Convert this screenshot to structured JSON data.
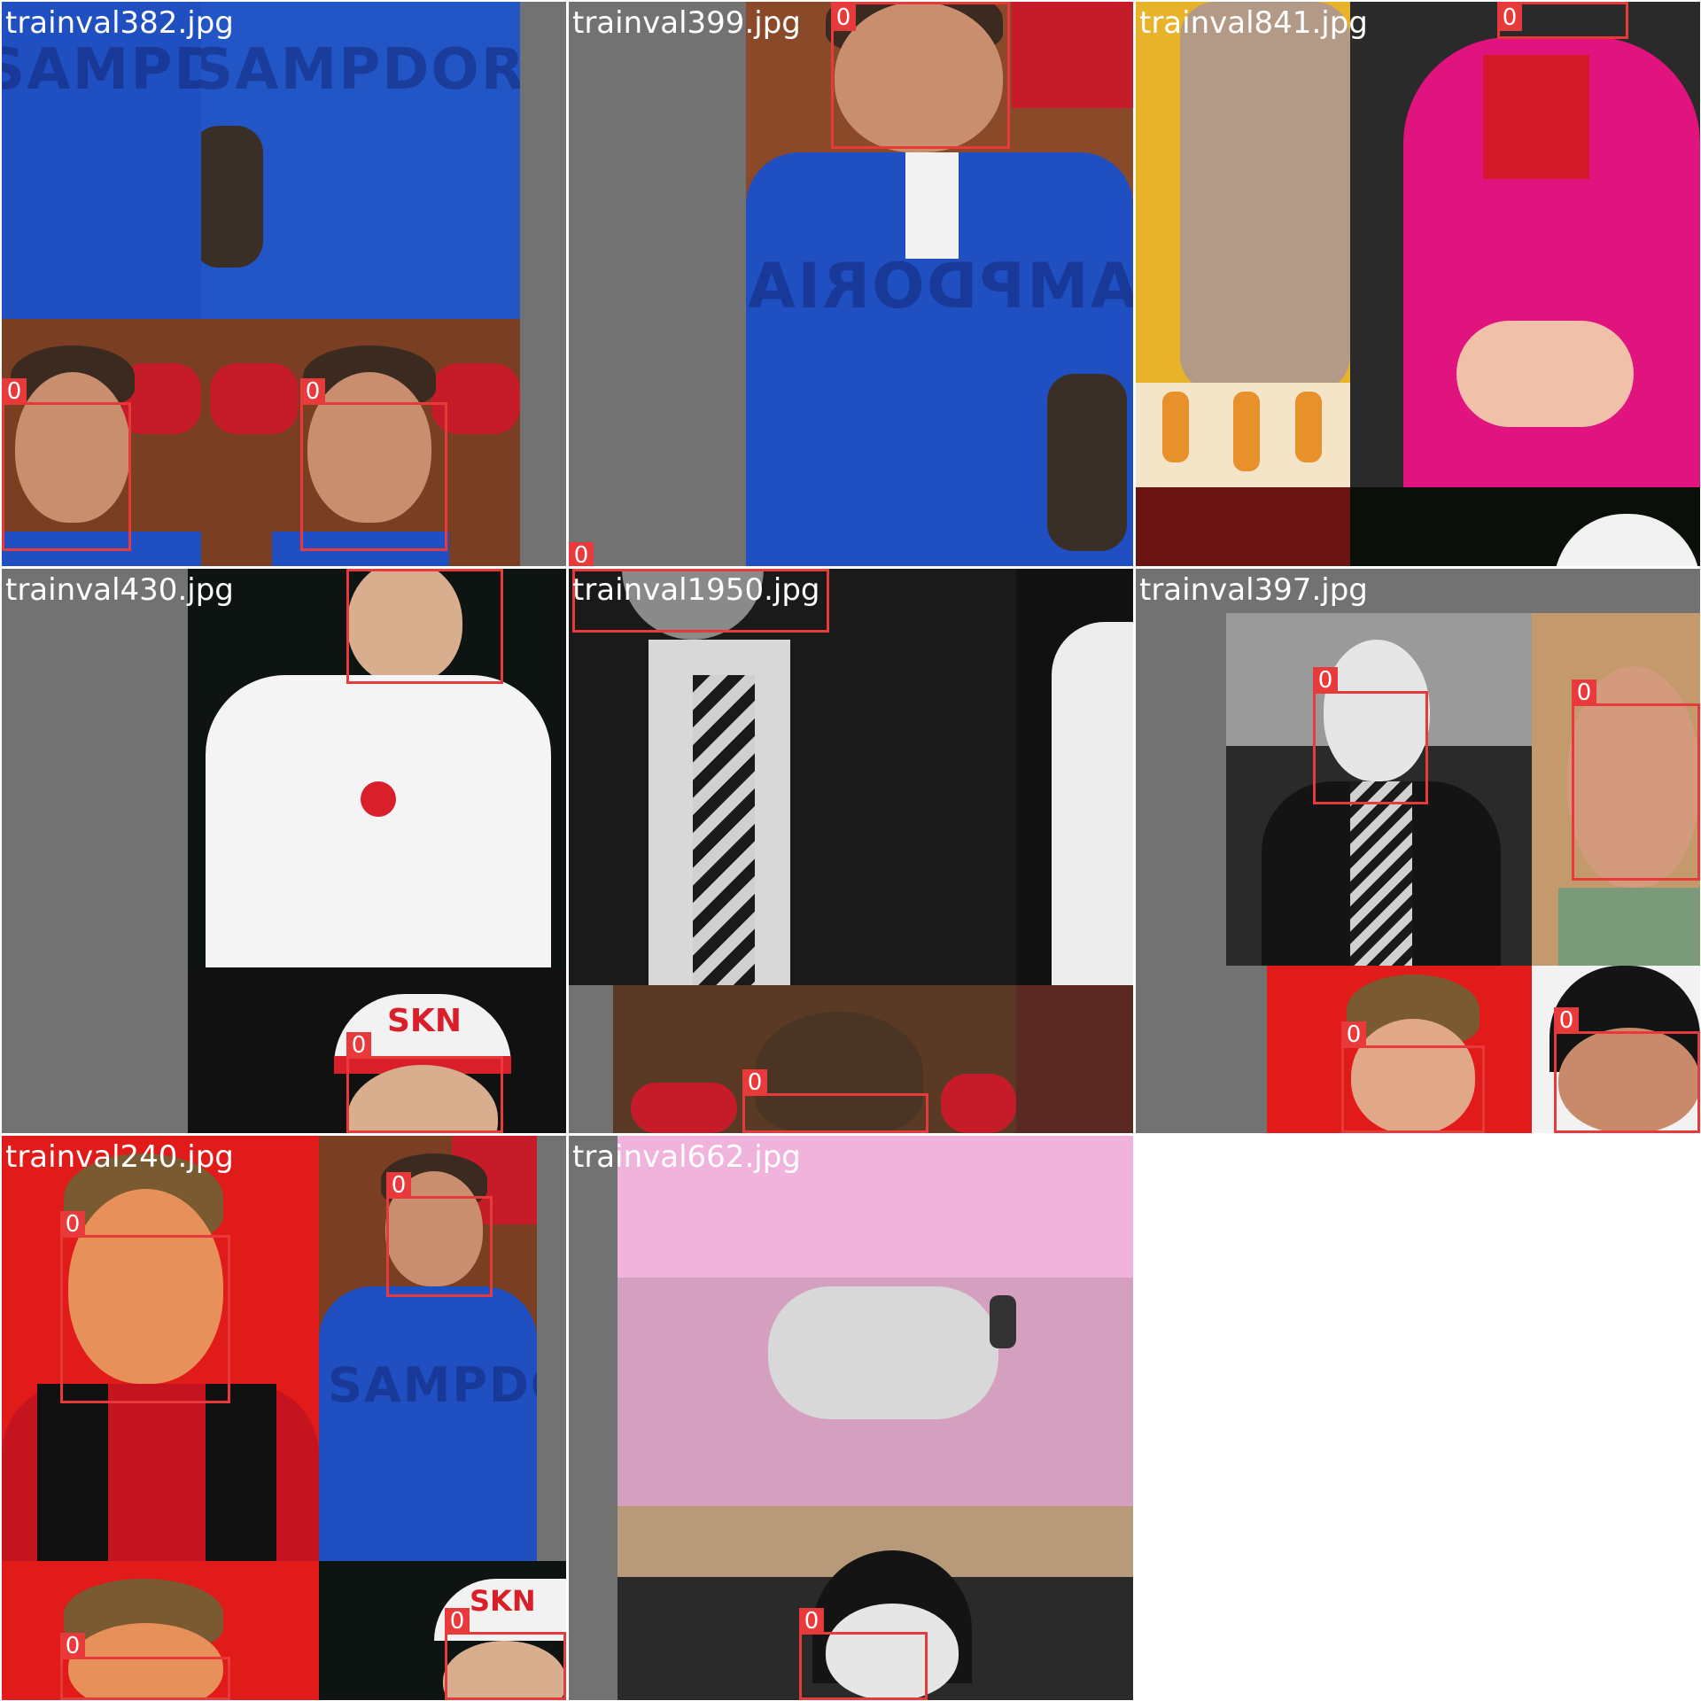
{
  "tiles": [
    {
      "filename": "trainval382.jpg",
      "label": "0"
    },
    {
      "filename": "trainval399.jpg",
      "label": "0"
    },
    {
      "filename": "trainval841.jpg",
      "label": "0"
    },
    {
      "filename": "trainval430.jpg",
      "label": "0"
    },
    {
      "filename": "trainval1950.jpg",
      "label": "0"
    },
    {
      "filename": "trainval397.jpg",
      "label": "0"
    },
    {
      "filename": "trainval240.jpg",
      "label": "0"
    },
    {
      "filename": "trainval662.jpg",
      "label": "0"
    }
  ],
  "shirt_text": "SAMPDORIA",
  "cap_text": "SKN",
  "colors": {
    "box": "#e8393b",
    "pad": "#727272",
    "blue_shirt": "#1f4fc0",
    "pink_dress": "#e0137f",
    "red_backdrop": "#e11a1a"
  }
}
